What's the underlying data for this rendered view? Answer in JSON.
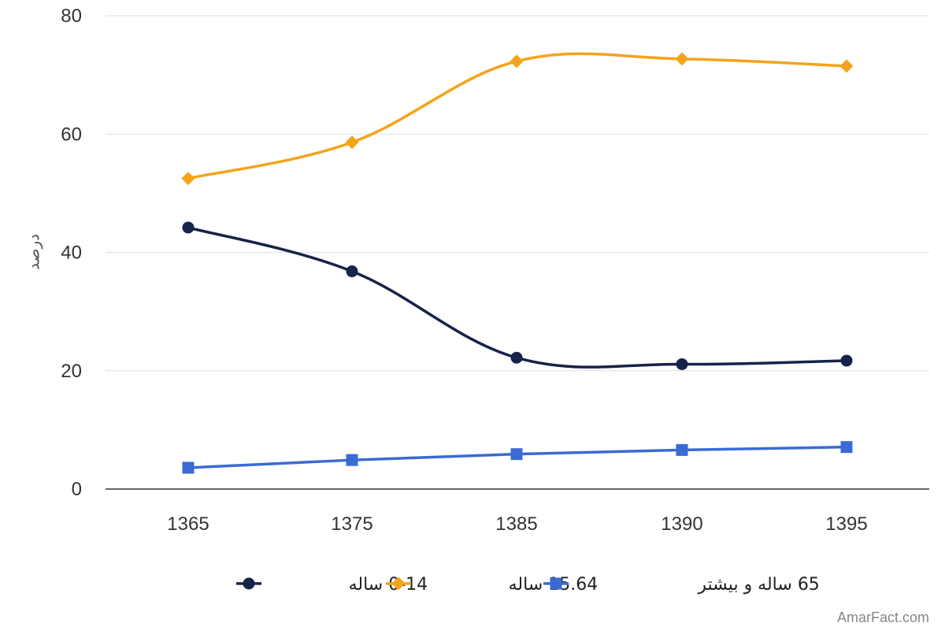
{
  "chart_data": {
    "type": "line",
    "categories": [
      "1365",
      "1375",
      "1385",
      "1390",
      "1395"
    ],
    "ylabel": "درصد",
    "ylim": [
      0,
      80
    ],
    "yticks": [
      "0",
      "20",
      "40",
      "60",
      "80"
    ],
    "grid": true,
    "legend_position": "bottom",
    "series": [
      {
        "name": "0-14 ساله",
        "values": [
          44.2,
          36.8,
          22.2,
          21.1,
          21.7
        ],
        "color": "#16234a",
        "marker": "circle"
      },
      {
        "name": "15.64 ساله",
        "values": [
          52.5,
          58.6,
          72.3,
          72.7,
          71.5
        ],
        "color": "#f5a31a",
        "marker": "diamond"
      },
      {
        "name": "65 ساله و بیشتر",
        "values": [
          3.6,
          4.9,
          5.9,
          6.6,
          7.1
        ],
        "color": "#3a6bd4",
        "marker": "square"
      }
    ]
  },
  "watermark": "AmarFact.com"
}
